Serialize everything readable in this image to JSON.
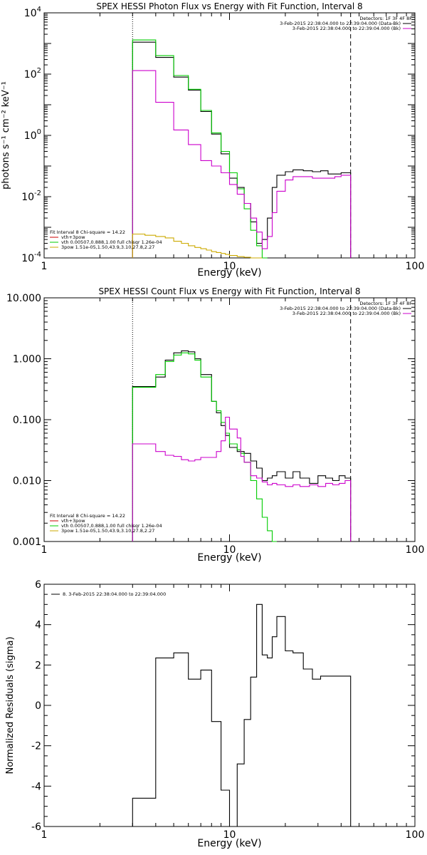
{
  "chart_data": [
    {
      "type": "line",
      "title": "SPEX HESSI Photon Flux vs Energy with Fit Function, Interval 8",
      "xlabel": "Energy (keV)",
      "ylabel": "photons s⁻¹ cm⁻² keV⁻¹",
      "xscale": "log",
      "yscale": "log",
      "xlim": [
        1,
        100
      ],
      "ylim": [
        0.0001,
        10000
      ],
      "xticks": [
        {
          "v": 1,
          "label": "1"
        },
        {
          "v": 10,
          "label": "10"
        },
        {
          "v": 100,
          "label": "100"
        }
      ],
      "yticks": [
        {
          "v": 0.0001,
          "base": "10",
          "exp": "-4"
        },
        {
          "v": 0.01,
          "base": "10",
          "exp": "-2"
        },
        {
          "v": 1,
          "base": "10",
          "exp": "0"
        },
        {
          "v": 100,
          "base": "10",
          "exp": "2"
        },
        {
          "v": 10000,
          "base": "10",
          "exp": "4"
        }
      ],
      "vlines": [
        {
          "x": 3.0,
          "style": "dotted"
        },
        {
          "x": 45.0,
          "style": "dashed"
        }
      ],
      "legend_right": [
        {
          "text": "Detectors: 1F 3F 4F 8F",
          "color": "#000000",
          "line": false
        },
        {
          "text": "3-Feb-2015 22:38:04.000 to 22:39:04.000 (Data-Bk)",
          "color": "#000000",
          "line": true
        },
        {
          "text": "3-Feb-2015 22:38:04.000 to 22:39:04.000 (Bk)",
          "color": "#cc00cc",
          "line": true
        }
      ],
      "legend_left": [
        {
          "text": "Fit Interval 8   Chi-square = 14.22",
          "color": "#000000",
          "line": false
        },
        {
          "text": "vth+3pow",
          "color": "#cc0000",
          "line": true
        },
        {
          "text": "vth 0.00507,0.888,1.00  full chisqr 1.26e-04",
          "color": "#00cc00",
          "line": true
        },
        {
          "text": "3pow 1.51e-05,1.50,43.9,3.10,27.8,2.27",
          "color": "#ccaa00",
          "line": true
        }
      ],
      "series": [
        {
          "color": "#000000",
          "edges": [
            3.0,
            3.5,
            4.0,
            4.5,
            5.0,
            5.5,
            6.0,
            6.5,
            7.0,
            7.5,
            8.0,
            8.5,
            9.0,
            9.5,
            10.0,
            11.0,
            12.0,
            13.0,
            14.0,
            15.0,
            16.0,
            17.0,
            18.0,
            20.0,
            22.0,
            25.0,
            28.0,
            31.0,
            34.0,
            37.0,
            40.0,
            45.0
          ],
          "values": [
            1100,
            1100,
            350,
            350,
            80,
            80,
            30,
            30,
            6,
            6,
            1.1,
            1.1,
            0.25,
            0.25,
            0.04,
            0.02,
            0.006,
            0.0015,
            0.0003,
            0.0004,
            0.002,
            0.02,
            0.05,
            0.065,
            0.075,
            0.07,
            0.065,
            0.07,
            0.055,
            0.055,
            0.06
          ]
        },
        {
          "color": "#00cc00",
          "edges": [
            3.0,
            3.5,
            4.0,
            4.5,
            5.0,
            5.5,
            6.0,
            6.5,
            7.0,
            7.5,
            8.0,
            8.5,
            9.0,
            9.5,
            10.0,
            11.0,
            12.0,
            13.0,
            14.0,
            15.0,
            16.0
          ],
          "values": [
            1300,
            1300,
            400,
            400,
            90,
            90,
            32,
            32,
            6.5,
            6.5,
            1.2,
            1.2,
            0.3,
            0.3,
            0.06,
            0.018,
            0.004,
            0.0008,
            0.00025,
            0.0001
          ]
        },
        {
          "color": "#cc00cc",
          "edges": [
            3.0,
            3.5,
            4.0,
            4.5,
            5.0,
            5.5,
            6.0,
            6.5,
            7.0,
            7.5,
            8.0,
            8.5,
            9.0,
            9.5,
            10.0,
            11.0,
            12.0,
            13.0,
            14.0,
            15.0,
            16.0,
            17.0,
            18.0,
            20.0,
            22.0,
            25.0,
            28.0,
            31.0,
            34.0,
            37.0,
            40.0,
            45.0
          ],
          "values": [
            130,
            130,
            12,
            12,
            1.5,
            1.5,
            0.5,
            0.5,
            0.15,
            0.15,
            0.1,
            0.1,
            0.06,
            0.06,
            0.025,
            0.012,
            0.006,
            0.002,
            0.0007,
            0.0002,
            0.0005,
            0.003,
            0.015,
            0.035,
            0.045,
            0.045,
            0.04,
            0.04,
            0.04,
            0.045,
            0.05
          ]
        },
        {
          "color": "#ccaa00",
          "edges": [
            3.0,
            3.5,
            4.0,
            4.5,
            5.0,
            5.5,
            6.0,
            6.5,
            7.0,
            7.5,
            8.0,
            8.5,
            9.0,
            9.5,
            10.0,
            11.0,
            12.0,
            13.0,
            14.0,
            15.0
          ],
          "values": [
            0.0006,
            0.00055,
            0.0005,
            0.00045,
            0.00035,
            0.0003,
            0.00025,
            0.00022,
            0.0002,
            0.00018,
            0.00016,
            0.00015,
            0.00014,
            0.00013,
            0.00012,
            0.00011,
            0.000105,
            0.0001,
            0.0001
          ]
        }
      ]
    },
    {
      "type": "line",
      "title": "SPEX HESSI Count Flux vs Energy with Fit Function, Interval 8",
      "xlabel": "Energy (keV)",
      "ylabel": "",
      "xscale": "log",
      "yscale": "log",
      "xlim": [
        1,
        100
      ],
      "ylim": [
        0.001,
        10
      ],
      "xticks": [
        {
          "v": 1,
          "label": "1"
        },
        {
          "v": 10,
          "label": "10"
        },
        {
          "v": 100,
          "label": "100"
        }
      ],
      "yticks": [
        {
          "v": 0.001,
          "label": "0.001"
        },
        {
          "v": 0.01,
          "label": "0.010"
        },
        {
          "v": 0.1,
          "label": "0.100"
        },
        {
          "v": 1,
          "label": "1.000"
        },
        {
          "v": 10,
          "label": "10.000"
        }
      ],
      "vlines": [
        {
          "x": 3.0,
          "style": "dotted"
        },
        {
          "x": 45.0,
          "style": "dashed"
        }
      ],
      "legend_right": [
        {
          "text": "Detectors: 1F 3F 4F 8F",
          "color": "#000000",
          "line": false
        },
        {
          "text": "3-Feb-2015 22:38:04.000 to 22:39:04.000 (Data-Bk)",
          "color": "#000000",
          "line": true
        },
        {
          "text": "3-Feb-2015 22:38:04.000 to 22:39:04.000 (Bk)",
          "color": "#cc00cc",
          "line": true
        }
      ],
      "legend_left": [
        {
          "text": "Fit Interval 8   Chi-square = 14.22",
          "color": "#000000",
          "line": false
        },
        {
          "text": "vth+3pow",
          "color": "#cc0000",
          "line": true
        },
        {
          "text": "vth 0.00507,0.888,1.00  full chisqr 1.26e-04",
          "color": "#00cc00",
          "line": true
        },
        {
          "text": "3pow 1.51e-05,1.50,43.9,3.10,27.8,2.27",
          "color": "#ccaa00",
          "line": true
        }
      ],
      "series": [
        {
          "color": "#000000",
          "edges": [
            3.0,
            4.0,
            4.5,
            5.0,
            5.5,
            6.0,
            6.5,
            7.0,
            8.0,
            8.5,
            9.0,
            9.5,
            10.0,
            11.0,
            11.5,
            12.0,
            13.0,
            14.0,
            15.0,
            16.0,
            17.0,
            18.0,
            20.0,
            22.0,
            24.0,
            27.0,
            30.0,
            33.0,
            36.0,
            39.0,
            42.0,
            45.0
          ],
          "values": [
            0.35,
            0.5,
            0.95,
            1.25,
            1.35,
            1.3,
            1.0,
            0.55,
            0.2,
            0.13,
            0.08,
            0.055,
            0.035,
            0.03,
            0.03,
            0.028,
            0.021,
            0.016,
            0.01,
            0.011,
            0.012,
            0.014,
            0.011,
            0.014,
            0.011,
            0.009,
            0.012,
            0.011,
            0.01,
            0.012,
            0.011
          ]
        },
        {
          "color": "#00cc00",
          "edges": [
            3.0,
            4.0,
            4.5,
            5.0,
            5.5,
            6.0,
            6.5,
            7.0,
            8.0,
            8.5,
            9.0,
            9.5,
            10.0,
            11.0,
            11.5,
            12.0,
            13.0,
            14.0,
            15.0,
            16.0,
            17.0,
            18.0
          ],
          "values": [
            0.34,
            0.55,
            0.9,
            1.15,
            1.25,
            1.2,
            0.95,
            0.5,
            0.2,
            0.14,
            0.09,
            0.06,
            0.04,
            0.032,
            0.028,
            0.02,
            0.01,
            0.005,
            0.0025,
            0.0015,
            0.001
          ]
        },
        {
          "color": "#cc00cc",
          "edges": [
            3.0,
            4.0,
            4.5,
            5.0,
            5.5,
            6.0,
            6.5,
            7.0,
            8.0,
            8.5,
            9.0,
            9.5,
            10.0,
            11.0,
            11.5,
            12.0,
            13.0,
            14.0,
            15.0,
            16.0,
            17.0,
            18.0,
            20.0,
            22.0,
            24.0,
            27.0,
            30.0,
            33.0,
            36.0,
            39.0,
            42.0,
            45.0
          ],
          "values": [
            0.04,
            0.03,
            0.026,
            0.025,
            0.022,
            0.021,
            0.022,
            0.024,
            0.024,
            0.03,
            0.045,
            0.11,
            0.07,
            0.05,
            0.025,
            0.02,
            0.012,
            0.011,
            0.0095,
            0.0085,
            0.009,
            0.0085,
            0.008,
            0.0085,
            0.008,
            0.0085,
            0.008,
            0.009,
            0.0085,
            0.009,
            0.01
          ]
        }
      ]
    },
    {
      "type": "line",
      "title": "",
      "xlabel": "Energy (keV)",
      "ylabel": "Normalized Residuals (sigma)",
      "xscale": "log",
      "yscale": "linear",
      "xlim": [
        1,
        100
      ],
      "ylim": [
        -6,
        6
      ],
      "xticks": [
        {
          "v": 1,
          "label": "1"
        },
        {
          "v": 10,
          "label": "10"
        },
        {
          "v": 100,
          "label": "100"
        }
      ],
      "yticks": [
        {
          "v": -6,
          "label": "-6"
        },
        {
          "v": -4,
          "label": "-4"
        },
        {
          "v": -2,
          "label": "-2"
        },
        {
          "v": 0,
          "label": "0"
        },
        {
          "v": 2,
          "label": "2"
        },
        {
          "v": 4,
          "label": "4"
        },
        {
          "v": 6,
          "label": "6"
        }
      ],
      "vlines": [],
      "legend_right": [],
      "legend_left": [],
      "legend_top": [
        {
          "text": "8.  3-Feb-2015 22:38:04.000 to 22:39:04.000",
          "color": "#000000",
          "line": true
        }
      ],
      "series": [
        {
          "color": "#000000",
          "edges": [
            3.0,
            3.5,
            4.0,
            4.5,
            5.0,
            5.5,
            6.0,
            6.5,
            7.0,
            7.5,
            8.0,
            8.5,
            9.0,
            9.5,
            10.0,
            11.0,
            12.0,
            13.0,
            14.0,
            15.0,
            16.0,
            17.0,
            18.0,
            20.0,
            22.0,
            25.0,
            28.0,
            31.0,
            34.0,
            37.0,
            40.0,
            45.0
          ],
          "values": [
            -4.6,
            -4.6,
            2.35,
            2.35,
            2.6,
            2.6,
            1.3,
            1.3,
            1.75,
            1.75,
            -0.8,
            -0.8,
            -4.2,
            -4.2,
            -6.0,
            -2.9,
            -0.7,
            1.4,
            5.0,
            2.5,
            2.35,
            3.4,
            4.4,
            2.7,
            2.6,
            1.8,
            1.3,
            1.45,
            1.45,
            1.45,
            1.45
          ]
        }
      ]
    }
  ]
}
